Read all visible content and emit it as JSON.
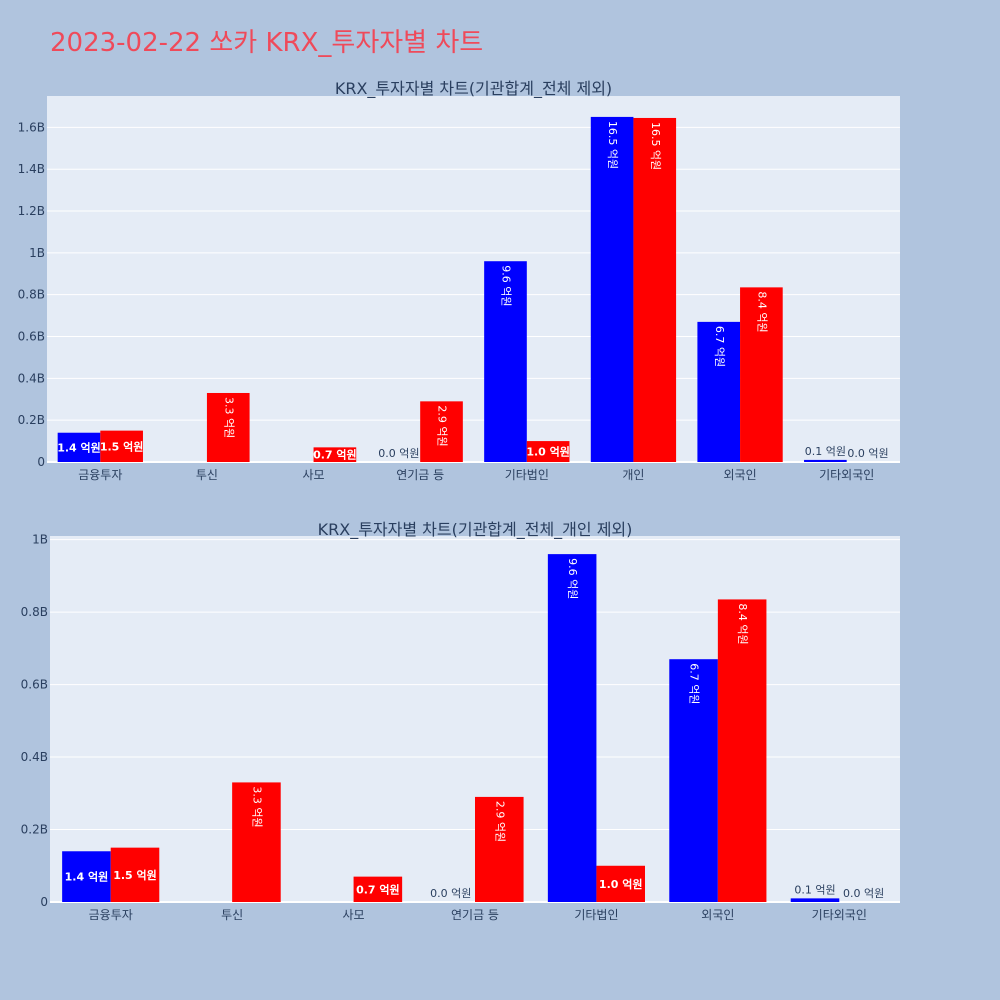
{
  "page": {
    "title": "2023-02-22 쏘카 KRX_투자자별 차트",
    "background": "#b0c4de",
    "title_color": "#ef4a5a"
  },
  "colors": {
    "plot_bg": "#e5ecf6",
    "grid": "#ffffff",
    "text": "#2a3f5f",
    "series_buy": "#0000ff",
    "series_sell": "#ff0000"
  },
  "chart_data": [
    {
      "type": "bar",
      "title": "KRX_투자자별 차트(기관합계_전체 제외)",
      "categories": [
        "금융투자",
        "투신",
        "사모",
        "연기금 등",
        "기타법인",
        "개인",
        "외국인",
        "기타외국인"
      ],
      "series": [
        {
          "values": [
            0.14,
            0,
            0,
            0.0,
            0.96,
            1.65,
            0.67,
            0.01
          ],
          "labels": [
            "1.4 억원",
            "",
            "",
            "0.0 억원",
            "9.6 억원",
            "16.5 억원",
            "6.7 억원",
            "0.1 억원"
          ]
        },
        {
          "values": [
            0.15,
            0.33,
            0.07,
            0.29,
            0.1,
            1.645,
            0.835,
            0.0
          ],
          "labels": [
            "1.5 억원",
            "3.3 억원",
            "0.7 억원",
            "2.9 억원",
            "1.0 억원",
            "16.5 억원",
            "8.4 억원",
            "0.0 억원"
          ]
        }
      ],
      "ylim": [
        0,
        1.75
      ],
      "yticks": [
        0,
        0.2,
        0.4,
        0.6,
        0.8,
        1.0,
        1.2,
        1.4,
        1.6
      ],
      "ytick_labels": [
        "0",
        "0.2B",
        "0.4B",
        "0.6B",
        "0.8B",
        "1B",
        "1.2B",
        "1.4B",
        "1.6B"
      ],
      "grid": true,
      "legend": "none"
    },
    {
      "type": "bar",
      "title": "KRX_투자자별 차트(기관합계_전체_개인 제외)",
      "categories": [
        "금융투자",
        "투신",
        "사모",
        "연기금 등",
        "기타법인",
        "외국인",
        "기타외국인"
      ],
      "series": [
        {
          "values": [
            0.14,
            0,
            0,
            0.0,
            0.96,
            0.67,
            0.01
          ],
          "labels": [
            "1.4 억원",
            "",
            "",
            "0.0 억원",
            "9.6 억원",
            "6.7 억원",
            "0.1 억원"
          ]
        },
        {
          "values": [
            0.15,
            0.33,
            0.07,
            0.29,
            0.1,
            0.835,
            0.0
          ],
          "labels": [
            "1.5 억원",
            "3.3 억원",
            "0.7 억원",
            "2.9 억원",
            "1.0 억원",
            "8.4 억원",
            "0.0 억원"
          ]
        }
      ],
      "ylim": [
        0,
        1.01
      ],
      "yticks": [
        0,
        0.2,
        0.4,
        0.6,
        0.8,
        1.0
      ],
      "ytick_labels": [
        "0",
        "0.2B",
        "0.4B",
        "0.6B",
        "0.8B",
        "1B"
      ],
      "grid": true,
      "legend": "none"
    }
  ]
}
